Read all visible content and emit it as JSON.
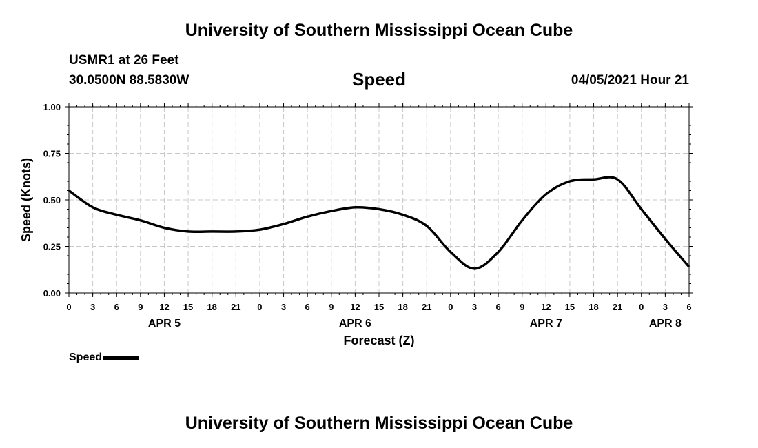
{
  "header": {
    "title": "University of Southern Mississippi Ocean Cube",
    "station": "USMR1 at 26 Feet",
    "coordinates": "30.0500N  88.5830W",
    "issue_time": "04/05/2021 Hour 21"
  },
  "footer": {
    "title": "University of Southern Mississippi Ocean Cube"
  },
  "legend": {
    "label": "Speed"
  },
  "chart_data": {
    "type": "line",
    "title": "Speed",
    "xlabel": "Forecast (Z)",
    "ylabel": "Speed (Knots)",
    "xlim": [
      0,
      78
    ],
    "ylim": [
      0,
      1
    ],
    "grid": true,
    "y_ticks": [
      0,
      0.25,
      0.5,
      0.75,
      1.0
    ],
    "y_tick_labels": [
      "0.00",
      "0.25",
      "0.50",
      "0.75",
      "1.00"
    ],
    "x_ticks": [
      0,
      3,
      6,
      9,
      12,
      15,
      18,
      21,
      24,
      27,
      30,
      33,
      36,
      39,
      42,
      45,
      48,
      51,
      54,
      57,
      60,
      63,
      66,
      69,
      72,
      75,
      78
    ],
    "x_tick_labels": [
      "0",
      "3",
      "6",
      "9",
      "12",
      "15",
      "18",
      "21",
      "0",
      "3",
      "6",
      "9",
      "12",
      "15",
      "18",
      "21",
      "0",
      "3",
      "6",
      "9",
      "12",
      "15",
      "18",
      "21",
      "0",
      "3",
      "6"
    ],
    "date_labels": [
      {
        "label": "APR 5",
        "x": 12
      },
      {
        "label": "APR 6",
        "x": 36
      },
      {
        "label": "APR 7",
        "x": 60
      },
      {
        "label": "APR 8",
        "x": 75
      }
    ],
    "series": [
      {
        "name": "Speed",
        "color": "#000000",
        "x": [
          0,
          3,
          6,
          9,
          12,
          15,
          18,
          21,
          24,
          27,
          30,
          33,
          36,
          39,
          42,
          45,
          48,
          51,
          54,
          57,
          60,
          63,
          66,
          69,
          72,
          75,
          78
        ],
        "values": [
          0.55,
          0.46,
          0.42,
          0.39,
          0.35,
          0.33,
          0.33,
          0.33,
          0.34,
          0.37,
          0.41,
          0.44,
          0.46,
          0.45,
          0.42,
          0.36,
          0.22,
          0.13,
          0.22,
          0.39,
          0.53,
          0.6,
          0.61,
          0.61,
          0.45,
          0.29,
          0.14
        ]
      }
    ]
  }
}
